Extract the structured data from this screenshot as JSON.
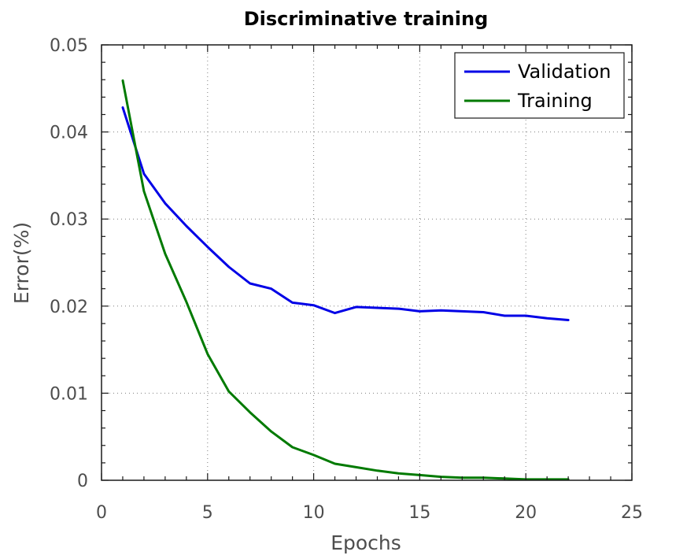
{
  "chart_data": {
    "type": "line",
    "title": "Discriminative training",
    "xlabel": "Epochs",
    "ylabel": "Error(%)",
    "xlim": [
      0,
      25
    ],
    "ylim": [
      0,
      0.05
    ],
    "x_ticks": [
      0,
      5,
      10,
      15,
      20,
      25
    ],
    "y_ticks": [
      0,
      0.01,
      0.02,
      0.03,
      0.04,
      0.05
    ],
    "x_tick_labels": [
      "0",
      "5",
      "10",
      "15",
      "20",
      "25"
    ],
    "y_tick_labels": [
      "0",
      "0.01",
      "0.02",
      "0.03",
      "0.04",
      "0.05"
    ],
    "grid": true,
    "legend_position": "top-right",
    "series": [
      {
        "name": "Validation",
        "color": "#0000e6",
        "x": [
          1,
          2,
          3,
          4,
          5,
          6,
          7,
          8,
          9,
          10,
          11,
          12,
          13,
          14,
          15,
          16,
          17,
          18,
          19,
          20,
          21,
          22
        ],
        "y": [
          0.0428,
          0.0352,
          0.0318,
          0.0292,
          0.0268,
          0.0245,
          0.0226,
          0.022,
          0.0204,
          0.0201,
          0.0192,
          0.0199,
          0.0198,
          0.0197,
          0.0194,
          0.0195,
          0.0194,
          0.0193,
          0.0189,
          0.0189,
          0.0186,
          0.0184
        ]
      },
      {
        "name": "Training",
        "color": "#007a00",
        "x": [
          1,
          2,
          3,
          4,
          5,
          6,
          7,
          8,
          9,
          10,
          11,
          12,
          13,
          14,
          15,
          16,
          17,
          18,
          19,
          20,
          21,
          22
        ],
        "y": [
          0.0459,
          0.0332,
          0.026,
          0.0205,
          0.0145,
          0.0102,
          0.0078,
          0.0056,
          0.0038,
          0.0029,
          0.0019,
          0.0015,
          0.0011,
          0.0008,
          0.0006,
          0.0004,
          0.0003,
          0.0003,
          0.0002,
          0.0001,
          0.0001,
          0.0001
        ]
      }
    ]
  }
}
